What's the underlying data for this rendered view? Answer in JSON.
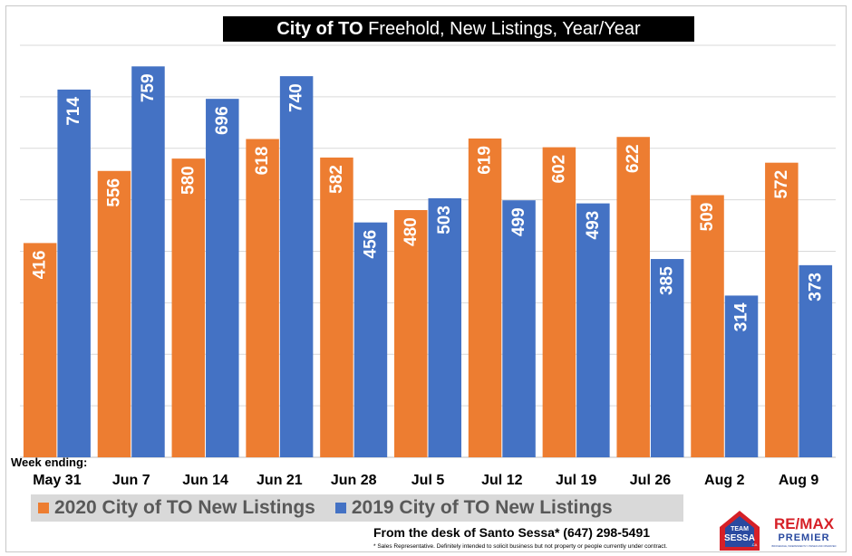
{
  "title": {
    "bold": "City of TO",
    "rest": "Freehold, New Listings, Year/Year"
  },
  "week_ending_label": "Week ending:",
  "colors": {
    "series_2020": "#ED7D31",
    "series_2019": "#4472C4",
    "legend_bg": "#D9D9D9",
    "grid": "#d9d9d9"
  },
  "chart_data": {
    "type": "bar",
    "categories": [
      "May 31",
      "Jun 7",
      "Jun 14",
      "Jun 21",
      "Jun 28",
      "Jul 5",
      "Jul 12",
      "Jul 19",
      "Jul 26",
      "Aug 2",
      "Aug 9"
    ],
    "series": [
      {
        "name": "2020 City of TO New Listings",
        "values": [
          416,
          556,
          580,
          618,
          582,
          480,
          619,
          602,
          622,
          509,
          572
        ]
      },
      {
        "name": "2019 City of TO New Listings",
        "values": [
          714,
          759,
          696,
          740,
          456,
          503,
          499,
          493,
          385,
          314,
          373
        ]
      }
    ],
    "ylim": [
      0,
      800
    ],
    "grid": true,
    "legend": "bottom",
    "data_labels": "inside-end, rotated"
  },
  "legend": {
    "item_2020": "2020 City of TO New Listings",
    "item_2019": "2019 City of TO New Listings"
  },
  "footer": {
    "desk": "From the desk of Santo Sessa* (647) 298-5491",
    "disclaimer": "* Sales Representative.  Definitely intended to solicit  business  but not property or people currently under contract."
  },
  "logos": {
    "team": {
      "line1": "TEAM",
      "line2": "SESSA",
      "line3": ".CA"
    },
    "remax": {
      "brand": "RE/MAX",
      "sub": "PREMIER",
      "tagline": "BROKERAGE, INDEPENDENTLY OWNED AND OPERATED"
    }
  }
}
